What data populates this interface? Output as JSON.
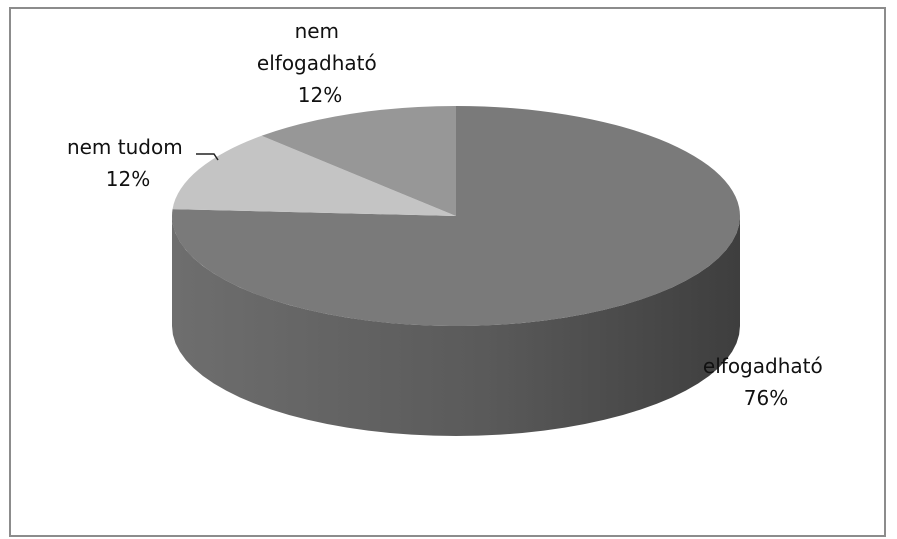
{
  "chart_data": {
    "type": "pie",
    "title": "",
    "slices": [
      {
        "label": "elfogadható",
        "label_lines": [
          "elfogadható"
        ],
        "pct_text": "76%",
        "value": 76,
        "color": "#7a7a7a",
        "side_color": "#5a5a5a"
      },
      {
        "label": "nem tudom",
        "label_lines": [
          "nem tudom"
        ],
        "pct_text": "12%",
        "value": 12,
        "color": "#c4c4c4",
        "side_color": "#9a9a9a"
      },
      {
        "label": "nem elfogadható",
        "label_lines": [
          "nem",
          "elfogadható"
        ],
        "pct_text": "12%",
        "value": 12,
        "color": "#979797",
        "side_color": "#6f6f6f"
      }
    ],
    "style": "3d",
    "legend": "none"
  }
}
